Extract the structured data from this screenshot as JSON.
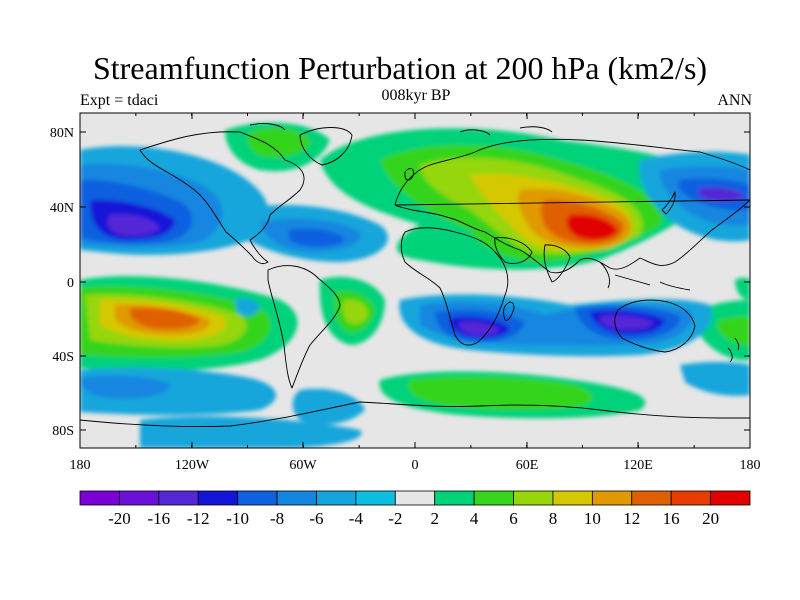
{
  "title": "Streamfunction Perturbation at 200 hPa (km2/s)",
  "subtitle_left": "Expt = tdaci",
  "subtitle_center": "008kyr BP",
  "subtitle_right": "ANN",
  "lat_ticks": [
    "80N",
    "40N",
    "0",
    "40S",
    "80S"
  ],
  "lon_ticks": [
    "180",
    "120W",
    "60W",
    "0",
    "60E",
    "120E",
    "180"
  ],
  "colorbar": {
    "labels": [
      "-20",
      "-16",
      "-12",
      "-10",
      "-8",
      "-6",
      "-4",
      "-2",
      "2",
      "4",
      "6",
      "8",
      "10",
      "12",
      "16",
      "20"
    ],
    "colors": [
      "#7a00d4",
      "#6a10d8",
      "#5528d6",
      "#1414d8",
      "#1060e0",
      "#1486e0",
      "#12a6dc",
      "#0ebee0",
      "#e6e6e6",
      "#00d27a",
      "#36d41e",
      "#96d60a",
      "#d6c800",
      "#e09a00",
      "#e06000",
      "#e63c00",
      "#e00000"
    ]
  },
  "legend_colors": {
    "land_outline": "#000000",
    "background": "#e6e6e6"
  }
}
